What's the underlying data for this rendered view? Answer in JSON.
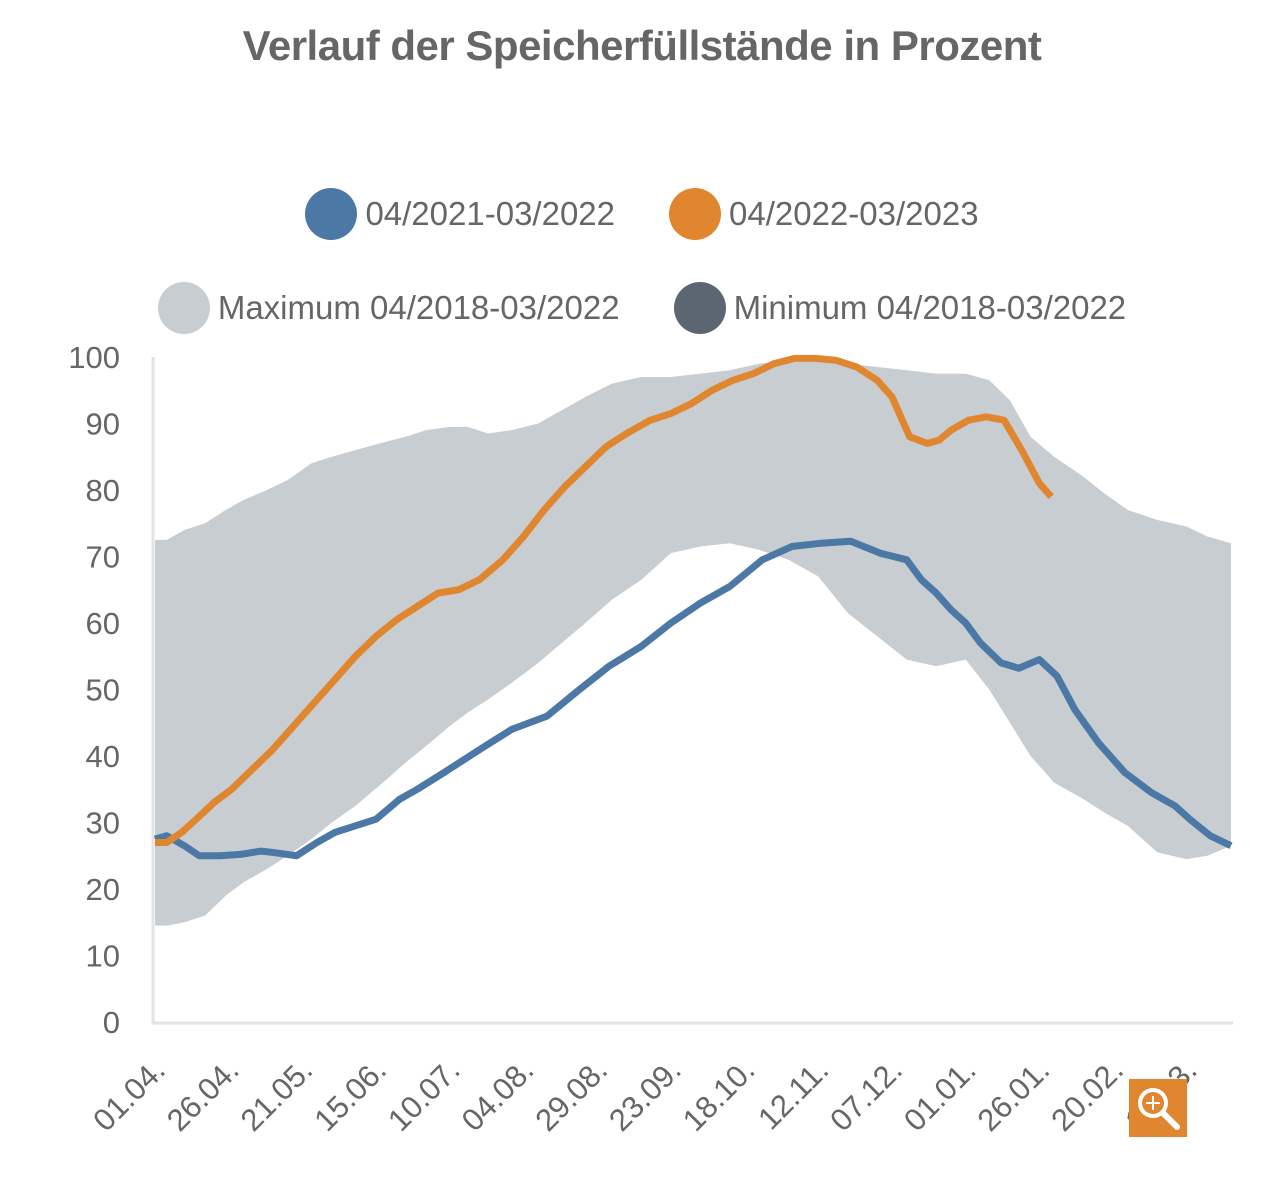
{
  "chart_data": {
    "type": "area",
    "title": "Verlauf der Speicherfüllstände in Prozent",
    "xlabel": "",
    "ylabel": "",
    "ylim": [
      0,
      100
    ],
    "yticks": [
      0,
      10,
      20,
      30,
      40,
      50,
      60,
      70,
      80,
      90,
      100
    ],
    "xticks_days": [
      0,
      25,
      50,
      75,
      100,
      125,
      150,
      175,
      200,
      225,
      250,
      275,
      300,
      325,
      350
    ],
    "xtick_labels": [
      "01.04.",
      "26.04.",
      "21.05.",
      "15.06.",
      "10.07.",
      "04.08.",
      "29.08.",
      "23.09.",
      "18.10.",
      "12.11.",
      "07.12.",
      "01.01.",
      "26.01.",
      "20.02.",
      "17.03."
    ],
    "xlim_days": [
      0,
      365
    ],
    "grid": false,
    "legend_position": "top",
    "legend": [
      {
        "name": "04/2021-03/2022",
        "color": "#4c78a6"
      },
      {
        "name": "04/2022-03/2023",
        "color": "#e0862f"
      },
      {
        "name": "Maximum 04/2018-03/2022",
        "color": "#c8cdd1"
      },
      {
        "name": "Minimum 04/2018-03/2022",
        "color": "#5b6670"
      }
    ],
    "band": {
      "name_max": "Maximum 04/2018-03/2022",
      "name_min": "Minimum 04/2018-03/2022",
      "fill": "#c8cdd1",
      "day": [
        0,
        4,
        10,
        17,
        24,
        30,
        38,
        45,
        53,
        60,
        68,
        76,
        85,
        92,
        100,
        106,
        113,
        121,
        130,
        138,
        146,
        155,
        165,
        175,
        185,
        195,
        205,
        215,
        225,
        235,
        245,
        255,
        265,
        275,
        283,
        290,
        297,
        305,
        315,
        322,
        330,
        340,
        350,
        357,
        365
      ],
      "max": [
        72.5,
        72.5,
        74,
        75,
        77,
        78.5,
        80,
        81.5,
        84,
        85,
        86,
        87,
        88,
        89,
        89.5,
        89.5,
        88.5,
        89,
        90,
        92,
        94,
        96,
        97,
        97,
        97.5,
        98,
        99,
        99.5,
        99.5,
        99,
        98.5,
        98,
        97.5,
        97.5,
        96.5,
        93.5,
        88,
        85,
        82,
        79.5,
        77,
        75.5,
        74.5,
        73,
        72
      ],
      "min": [
        14.5,
        14.5,
        15,
        16,
        19,
        21,
        23,
        25,
        27.5,
        30,
        32.5,
        35.5,
        39,
        41.5,
        44.5,
        46.5,
        48.5,
        51,
        54,
        57,
        60,
        63.5,
        66.5,
        70.5,
        71.5,
        72,
        71,
        69.5,
        67,
        61.5,
        58,
        54.5,
        53.5,
        54.5,
        50,
        45,
        40,
        36,
        33.5,
        31.5,
        29.5,
        25.5,
        24.5,
        25,
        26.5
      ]
    },
    "series": [
      {
        "name": "04/2021-03/2022",
        "color": "#4c78a6",
        "day": [
          0,
          4,
          10,
          15,
          22,
          29,
          36,
          40,
          48,
          55,
          61,
          68,
          75,
          83,
          89,
          98,
          105,
          112,
          121,
          133,
          144,
          154,
          165,
          175,
          185,
          195,
          206,
          216,
          226,
          236,
          246,
          255,
          260,
          265,
          270,
          275,
          280,
          287,
          293,
          300,
          306,
          312,
          320,
          329,
          338,
          346,
          351,
          358,
          365
        ],
        "values": [
          27.5,
          28,
          26.5,
          25,
          25,
          25.2,
          25.7,
          25.5,
          25,
          27,
          28.5,
          29.5,
          30.5,
          33.5,
          35,
          37.5,
          39.5,
          41.5,
          44,
          46,
          50,
          53.5,
          56.5,
          60,
          63,
          65.5,
          69.5,
          71.5,
          72,
          72.3,
          70.5,
          69.5,
          66.5,
          64.5,
          62,
          60,
          57,
          54,
          53.2,
          54.5,
          52,
          47,
          42,
          37.5,
          34.5,
          32.5,
          30.5,
          28,
          26.5
        ]
      },
      {
        "name": "04/2022-03/2023",
        "color": "#e0862f",
        "day": [
          0,
          4,
          9,
          14,
          20,
          26,
          33,
          40,
          47,
          54,
          61,
          68,
          75,
          82,
          89,
          96,
          103,
          110,
          118,
          125,
          132,
          139,
          146,
          153,
          160,
          168,
          175,
          182,
          189,
          196,
          203,
          210,
          217,
          224,
          231,
          238,
          245,
          250,
          256,
          262,
          266,
          270,
          276,
          282,
          288,
          294,
          300,
          304
        ],
        "values": [
          27,
          27,
          28.5,
          30.5,
          33,
          35,
          38,
          41,
          44.5,
          48,
          51.5,
          55,
          58,
          60.5,
          62.5,
          64.5,
          65,
          66.5,
          69.5,
          73,
          77,
          80.5,
          83.5,
          86.5,
          88.5,
          90.5,
          91.5,
          93,
          95,
          96.5,
          97.5,
          99,
          99.8,
          99.8,
          99.5,
          98.5,
          96.5,
          94,
          88,
          87,
          87.5,
          89,
          90.5,
          91,
          90.5,
          86,
          81,
          79
        ]
      }
    ]
  },
  "ui": {
    "zoom_button_label": "zoom-in"
  }
}
